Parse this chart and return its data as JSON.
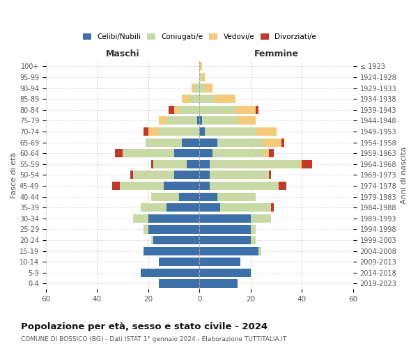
{
  "age_groups": [
    "0-4",
    "5-9",
    "10-14",
    "15-19",
    "20-24",
    "25-29",
    "30-34",
    "35-39",
    "40-44",
    "45-49",
    "50-54",
    "55-59",
    "60-64",
    "65-69",
    "70-74",
    "75-79",
    "80-84",
    "85-89",
    "90-94",
    "95-99",
    "100+"
  ],
  "birth_years": [
    "2019-2023",
    "2014-2018",
    "2009-2013",
    "2004-2008",
    "1999-2003",
    "1994-1998",
    "1989-1993",
    "1984-1988",
    "1979-1983",
    "1974-1978",
    "1969-1973",
    "1964-1968",
    "1959-1963",
    "1954-1958",
    "1949-1953",
    "1944-1948",
    "1939-1943",
    "1934-1938",
    "1929-1933",
    "1924-1928",
    "≤ 1923"
  ],
  "male": {
    "celibi": [
      16,
      23,
      16,
      22,
      18,
      20,
      20,
      13,
      8,
      14,
      10,
      5,
      10,
      7,
      0,
      1,
      0,
      0,
      0,
      0,
      0
    ],
    "coniugati": [
      0,
      0,
      0,
      0,
      1,
      2,
      6,
      10,
      11,
      17,
      16,
      13,
      20,
      14,
      16,
      12,
      8,
      4,
      2,
      0,
      0
    ],
    "vedovi": [
      0,
      0,
      0,
      0,
      0,
      0,
      0,
      0,
      0,
      0,
      0,
      0,
      0,
      0,
      4,
      3,
      2,
      3,
      1,
      0,
      0
    ],
    "divorziati": [
      0,
      0,
      0,
      0,
      0,
      0,
      0,
      0,
      0,
      3,
      1,
      1,
      3,
      0,
      2,
      0,
      2,
      0,
      0,
      0,
      0
    ]
  },
  "female": {
    "nubili": [
      15,
      20,
      16,
      23,
      20,
      20,
      20,
      8,
      7,
      4,
      4,
      4,
      5,
      7,
      2,
      1,
      0,
      0,
      0,
      0,
      0
    ],
    "coniugate": [
      0,
      0,
      0,
      1,
      2,
      2,
      8,
      20,
      15,
      27,
      23,
      35,
      20,
      18,
      20,
      14,
      14,
      6,
      2,
      1,
      0
    ],
    "vedove": [
      0,
      0,
      0,
      0,
      0,
      0,
      0,
      0,
      0,
      0,
      0,
      1,
      2,
      7,
      8,
      7,
      8,
      8,
      3,
      1,
      1
    ],
    "divorziate": [
      0,
      0,
      0,
      0,
      0,
      0,
      0,
      1,
      0,
      3,
      1,
      4,
      2,
      1,
      0,
      0,
      1,
      0,
      0,
      0,
      0
    ]
  },
  "color_celibi": "#3d6fa8",
  "color_coniugati": "#c8d9a5",
  "color_vedovi": "#f5c97a",
  "color_divorziati": "#c0392b",
  "title_main": "Popolazione per età, sesso e stato civile - 2024",
  "title_sub": "COMUNE DI BOSSICO (BG) - Dati ISTAT 1° gennaio 2024 - Elaborazione TUTTITALIA.IT",
  "xlabel_left": "Maschi",
  "xlabel_right": "Femmine",
  "ylabel_left": "Fasce di età",
  "ylabel_right": "Anni di nascita",
  "xlim": 60,
  "background_color": "#ffffff",
  "grid_color": "#cccccc"
}
